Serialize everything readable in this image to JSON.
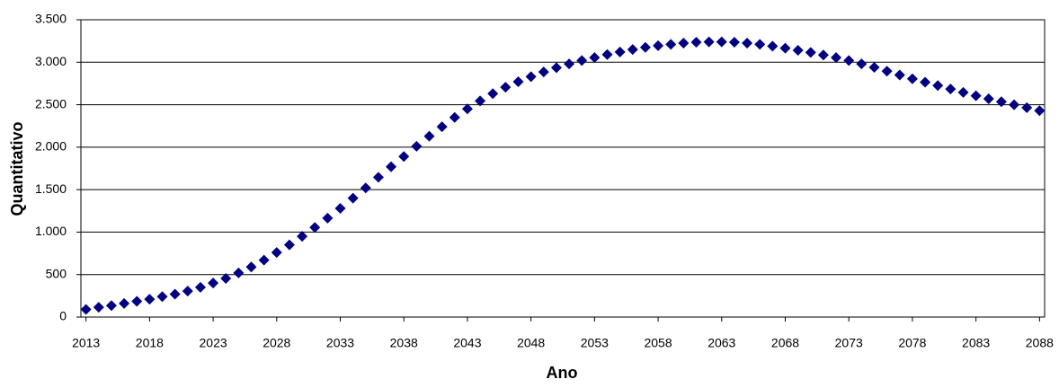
{
  "chart_data": {
    "type": "scatter",
    "marker": "diamond",
    "color": "#000080",
    "x_label": "Ano",
    "y_label": "Quantitativo",
    "x": [
      2013,
      2014,
      2015,
      2016,
      2017,
      2018,
      2019,
      2020,
      2021,
      2022,
      2023,
      2024,
      2025,
      2026,
      2027,
      2028,
      2029,
      2030,
      2031,
      2032,
      2033,
      2034,
      2035,
      2036,
      2037,
      2038,
      2039,
      2040,
      2041,
      2042,
      2043,
      2044,
      2045,
      2046,
      2047,
      2048,
      2049,
      2050,
      2051,
      2052,
      2053,
      2054,
      2055,
      2056,
      2057,
      2058,
      2059,
      2060,
      2061,
      2062,
      2063,
      2064,
      2065,
      2066,
      2067,
      2068,
      2069,
      2070,
      2071,
      2072,
      2073,
      2074,
      2075,
      2076,
      2077,
      2078,
      2079,
      2080,
      2081,
      2082,
      2083,
      2084,
      2085,
      2086,
      2087,
      2088
    ],
    "values": [
      90,
      115,
      135,
      160,
      185,
      210,
      240,
      270,
      305,
      350,
      400,
      455,
      520,
      590,
      670,
      760,
      850,
      950,
      1055,
      1165,
      1280,
      1400,
      1520,
      1645,
      1770,
      1890,
      2010,
      2130,
      2240,
      2350,
      2450,
      2545,
      2630,
      2705,
      2770,
      2830,
      2885,
      2935,
      2980,
      3020,
      3055,
      3090,
      3120,
      3150,
      3175,
      3195,
      3210,
      3225,
      3235,
      3240,
      3240,
      3235,
      3225,
      3210,
      3190,
      3165,
      3140,
      3115,
      3085,
      3055,
      3020,
      2980,
      2940,
      2895,
      2850,
      2805,
      2765,
      2725,
      2685,
      2645,
      2605,
      2570,
      2535,
      2500,
      2465,
      2430
    ],
    "xlim": [
      2012.6,
      2088.4
    ],
    "xticks": [
      2013,
      2018,
      2023,
      2028,
      2033,
      2038,
      2043,
      2048,
      2053,
      2058,
      2063,
      2068,
      2073,
      2078,
      2083,
      2088
    ],
    "ylim": [
      0,
      3500
    ],
    "yticks": [
      0,
      500,
      {
        "value": 1000,
        "label": "1.000"
      },
      {
        "value": 1500,
        "label": "1.500"
      },
      {
        "value": 2000,
        "label": "2.000"
      },
      {
        "value": 2500,
        "label": "2.500"
      },
      {
        "value": 3000,
        "label": "3.000"
      },
      {
        "value": 3500,
        "label": "3.500"
      }
    ],
    "grid": true
  }
}
